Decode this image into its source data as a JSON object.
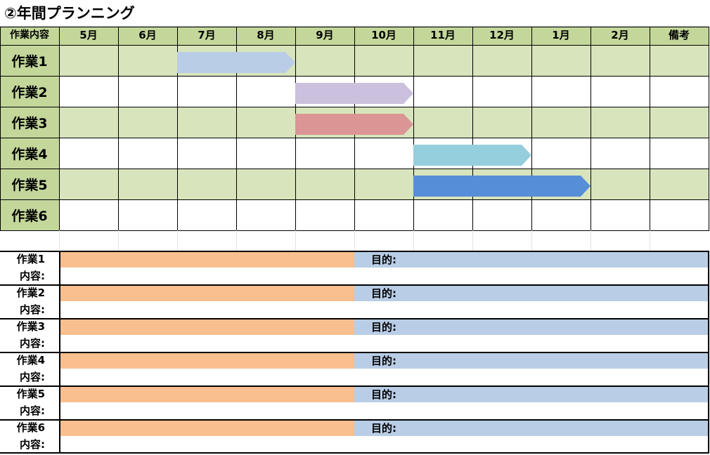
{
  "title": "②年間プランニング",
  "header": {
    "task_col": "作業内容",
    "months": [
      "5月",
      "6月",
      "7月",
      "8月",
      "9月",
      "10月",
      "11月",
      "12月",
      "1月",
      "2月"
    ],
    "notes_col": "備考"
  },
  "tasks": [
    {
      "label": "作業1",
      "start_month_index": 2,
      "end_month_index": 3,
      "color": "#b9cde6"
    },
    {
      "label": "作業2",
      "start_month_index": 4,
      "end_month_index": 5,
      "color": "#cbc0dd"
    },
    {
      "label": "作業3",
      "start_month_index": 4,
      "end_month_index": 5,
      "color": "#db9594"
    },
    {
      "label": "作業4",
      "start_month_index": 6,
      "end_month_index": 7,
      "color": "#95cedd"
    },
    {
      "label": "作業5",
      "start_month_index": 6,
      "end_month_index": 8,
      "color": "#568ed8"
    },
    {
      "label": "作業6"
    }
  ],
  "details": [
    {
      "task": "作業1",
      "purpose_label": "目的:",
      "content_label": "内容:"
    },
    {
      "task": "作業2",
      "purpose_label": "目的:",
      "content_label": "内容:"
    },
    {
      "task": "作業3",
      "purpose_label": "目的:",
      "content_label": "内容:"
    },
    {
      "task": "作業4",
      "purpose_label": "目的:",
      "content_label": "内容:"
    },
    {
      "task": "作業5",
      "purpose_label": "目的:",
      "content_label": "内容:"
    },
    {
      "task": "作業6",
      "purpose_label": "目的:",
      "content_label": "内容:"
    }
  ],
  "colors": {
    "header_bg": "#c4d79b",
    "band_bg": "#d8e4bc",
    "task_label_bg": "#c4d79b",
    "task_name_fill": "#fabf8f",
    "purpose_fill": "#b9cde6"
  }
}
